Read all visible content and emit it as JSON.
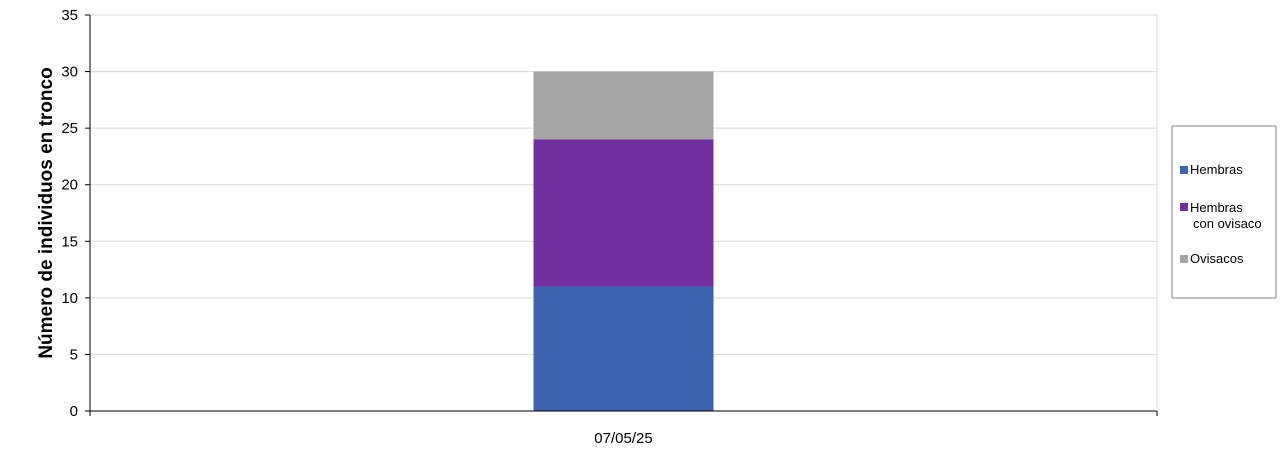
{
  "chart_data": {
    "type": "bar",
    "stacked": true,
    "categories": [
      "07/05/25"
    ],
    "series": [
      {
        "name": "Hembras",
        "values": [
          11
        ],
        "color": "#3d65ae"
      },
      {
        "name": "Hembras con ovisaco",
        "values": [
          13
        ],
        "color": "#7030a0"
      },
      {
        "name": "Ovisacos",
        "values": [
          6
        ],
        "color": "#a5a5a5"
      }
    ],
    "title": "",
    "xlabel": "",
    "ylabel": "Número de individuos en tronco",
    "ylim": [
      0,
      35
    ],
    "yticks": [
      0,
      5,
      10,
      15,
      20,
      25,
      30,
      35
    ],
    "grid": true,
    "legend": "right"
  }
}
